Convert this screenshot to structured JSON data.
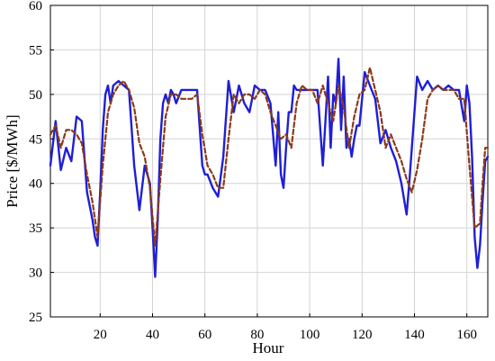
{
  "chart_data": {
    "type": "line",
    "title": "",
    "xlabel": "Hour",
    "ylabel": "Price [$/MWh]",
    "xlim": [
      1,
      168
    ],
    "ylim": [
      25,
      60
    ],
    "xticks": [
      20,
      40,
      60,
      80,
      100,
      120,
      140,
      160
    ],
    "yticks": [
      25,
      30,
      35,
      40,
      45,
      50,
      55,
      60
    ],
    "grid": true,
    "legend": "none",
    "colors": {
      "actual": "#1f1fd6",
      "forecast": "#8b3a1a"
    },
    "series": [
      {
        "style": "solid",
        "color": "#1f1fd6",
        "x": [
          1,
          3,
          5,
          7,
          9,
          11,
          13,
          15,
          17,
          18,
          19,
          20,
          21,
          22,
          23,
          24,
          25,
          27,
          29,
          31,
          33,
          35,
          37,
          38,
          39,
          40,
          41,
          42,
          43,
          44,
          45,
          46,
          47,
          48,
          49,
          51,
          53,
          55,
          57,
          59,
          60,
          61,
          63,
          65,
          67,
          69,
          71,
          73,
          75,
          77,
          79,
          81,
          83,
          85,
          87,
          88,
          89,
          90,
          91,
          92,
          93,
          94,
          95,
          97,
          99,
          101,
          103,
          105,
          107,
          108,
          109,
          110,
          111,
          112,
          113,
          114,
          115,
          116,
          117,
          118,
          119,
          121,
          123,
          125,
          127,
          129,
          131,
          133,
          135,
          137,
          138,
          139,
          141,
          143,
          145,
          147,
          149,
          151,
          153,
          155,
          157,
          159,
          160,
          161,
          162,
          163,
          164,
          165,
          166,
          167,
          168
        ],
        "y": [
          42,
          47,
          41.5,
          44,
          42.5,
          47.5,
          47,
          39,
          36,
          34,
          33,
          39,
          46,
          50,
          51,
          49,
          51,
          51.5,
          51,
          50.5,
          42,
          37,
          42,
          41,
          40,
          35,
          29.5,
          36,
          45,
          49,
          50,
          49,
          50.5,
          50,
          49,
          50.5,
          50.5,
          50.5,
          50.5,
          42,
          41,
          41,
          39.5,
          38.5,
          43,
          51.5,
          48,
          51,
          49,
          48,
          51,
          50.5,
          50.5,
          49,
          42,
          48,
          41,
          39.5,
          44,
          48,
          48,
          51,
          50.5,
          50.5,
          50.5,
          50.5,
          50.5,
          42,
          52,
          44,
          50,
          49,
          54,
          46,
          52,
          44,
          45,
          43,
          45,
          46.5,
          46.5,
          52.5,
          51,
          49.5,
          44.5,
          46,
          44,
          42.5,
          40,
          36.5,
          40,
          44,
          52,
          50.5,
          51.5,
          50.5,
          51,
          50.5,
          51,
          50.5,
          50.5,
          47,
          51,
          49,
          43,
          34,
          30.5,
          33,
          38,
          42.5,
          43
        ]
      },
      {
        "style": "dashed",
        "color": "#8b3a1a",
        "x": [
          1,
          3,
          5,
          7,
          9,
          11,
          13,
          15,
          17,
          19,
          21,
          23,
          25,
          27,
          29,
          31,
          33,
          35,
          37,
          39,
          41,
          43,
          45,
          47,
          49,
          51,
          53,
          55,
          57,
          59,
          61,
          63,
          65,
          67,
          69,
          71,
          73,
          75,
          77,
          79,
          81,
          83,
          85,
          87,
          89,
          91,
          93,
          95,
          97,
          99,
          101,
          103,
          105,
          107,
          109,
          111,
          113,
          115,
          117,
          119,
          121,
          123,
          125,
          127,
          129,
          131,
          133,
          135,
          137,
          139,
          141,
          143,
          145,
          147,
          149,
          151,
          153,
          155,
          157,
          159,
          161,
          163,
          165,
          166,
          167,
          168
        ],
        "y": [
          45.5,
          46.5,
          44,
          46,
          46,
          45.5,
          44.5,
          41,
          38,
          34,
          42,
          48,
          50,
          51,
          51.5,
          50.5,
          48.5,
          44.5,
          43,
          39.5,
          33,
          40.5,
          47.5,
          50,
          50,
          49.5,
          49.5,
          49.5,
          50,
          45.5,
          42,
          41,
          39.5,
          39.5,
          45,
          50,
          49,
          50,
          50,
          49.5,
          50.5,
          50,
          48,
          46.5,
          45,
          45.5,
          44,
          49,
          51,
          50.5,
          50.5,
          49,
          51,
          49,
          47,
          51,
          48.5,
          44,
          47.5,
          50,
          50.5,
          53,
          50.5,
          48,
          44,
          45.5,
          44,
          42.5,
          40.5,
          39,
          41.5,
          45,
          49.5,
          50.5,
          51,
          50.5,
          50.5,
          50.5,
          49.5,
          49.5,
          42,
          35,
          35.5,
          40,
          44,
          44
        ]
      }
    ]
  }
}
